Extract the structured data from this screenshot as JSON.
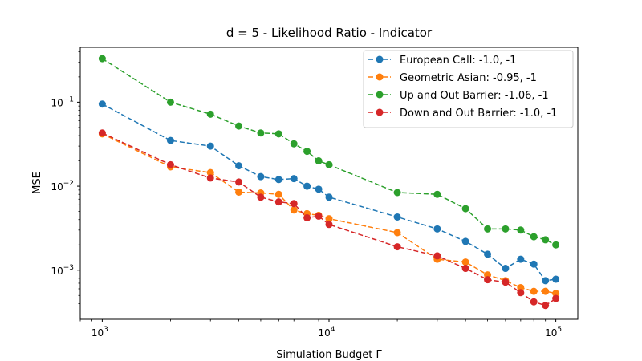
{
  "chart_data": {
    "type": "line",
    "title": "d = 5 - Likelihood Ratio - Indicator",
    "xlabel": "Simulation Budget Γ",
    "ylabel": "MSE",
    "xscale": "log",
    "yscale": "log",
    "xlim": [
      800,
      125000
    ],
    "ylim": [
      0.00026,
      0.45
    ],
    "grid": false,
    "legend_position": "top-right",
    "line_style": "dashed",
    "marker": "circle",
    "x": [
      1000,
      2000,
      3000,
      4000,
      5000,
      6000,
      7000,
      8000,
      9000,
      10000,
      20000,
      30000,
      40000,
      50000,
      60000,
      70000,
      80000,
      90000,
      100000
    ],
    "x_ticks": [
      {
        "value": 1000,
        "base": "10",
        "exp": "3"
      },
      {
        "value": 10000,
        "base": "10",
        "exp": "4"
      },
      {
        "value": 100000,
        "base": "10",
        "exp": "5"
      }
    ],
    "y_ticks": [
      {
        "value": 0.001,
        "base": "10",
        "exp": "−3"
      },
      {
        "value": 0.01,
        "base": "10",
        "exp": "−2"
      },
      {
        "value": 0.1,
        "base": "10",
        "exp": "−1"
      }
    ],
    "series": [
      {
        "name": "European Call: -1.0, -1",
        "color": "#1f77b4",
        "values": [
          0.095,
          0.035,
          0.03,
          0.0175,
          0.013,
          0.012,
          0.0123,
          0.01,
          0.0092,
          0.0074,
          0.0043,
          0.0031,
          0.0022,
          0.00155,
          0.00105,
          0.00135,
          0.00118,
          0.00075,
          0.00078
        ]
      },
      {
        "name": "Geometric Asian: -0.95, -1",
        "color": "#ff7f0e",
        "values": [
          0.042,
          0.017,
          0.0145,
          0.0085,
          0.0083,
          0.008,
          0.0052,
          0.0047,
          0.0045,
          0.0041,
          0.0028,
          0.00135,
          0.00125,
          0.00088,
          0.00075,
          0.00062,
          0.00056,
          0.00056,
          0.00053
        ]
      },
      {
        "name": "Up and Out Barrier: -1.06, -1",
        "color": "#2ca02c",
        "values": [
          0.33,
          0.1,
          0.072,
          0.052,
          0.043,
          0.042,
          0.032,
          0.026,
          0.02,
          0.018,
          0.0084,
          0.008,
          0.0054,
          0.0031,
          0.0031,
          0.003,
          0.0025,
          0.0023,
          0.002
        ]
      },
      {
        "name": "Down and Out Barrier: -1.0, -1",
        "color": "#d62728",
        "values": [
          0.043,
          0.018,
          0.0125,
          0.0112,
          0.0074,
          0.0065,
          0.0062,
          0.0042,
          0.0044,
          0.0035,
          0.0019,
          0.00148,
          0.00105,
          0.00077,
          0.00072,
          0.00054,
          0.00042,
          0.00038,
          0.00046
        ]
      }
    ]
  }
}
